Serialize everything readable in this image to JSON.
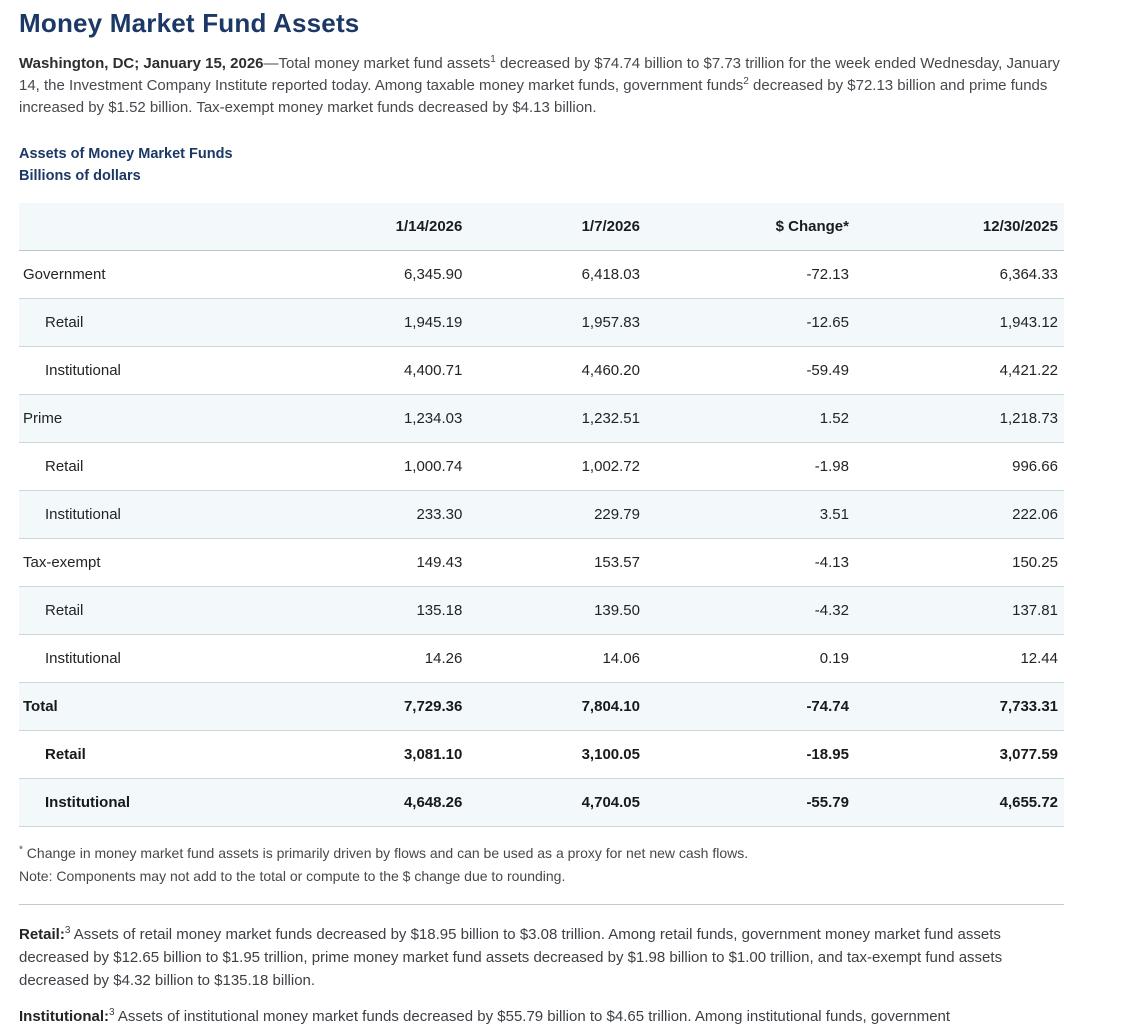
{
  "colors": {
    "brand_navy": "#1b3866",
    "row_stripe": "#f3f8fb",
    "header_border": "#b9c7cf",
    "row_border": "#ccd6db"
  },
  "page": {
    "title": "Money Market Fund Assets"
  },
  "intro": {
    "dateline": "Washington, DC; January 15, 2026",
    "dash": "—",
    "text_before_sup1": "Total money market fund assets",
    "sup1": "1",
    "text_after_sup1": " decreased by $74.74 billion to $7.73 trillion for the week ended Wednesday, January 14, the Investment Company Institute reported today. Among taxable money market funds, government funds",
    "sup2": "2",
    "text_after_sup2": " decreased by $72.13 billion and prime funds increased by $1.52 billion. Tax-exempt money market funds decreased by $4.13 billion."
  },
  "table": {
    "caption_title": "Assets of Money Market Funds",
    "caption_units": "Billions of dollars",
    "columns": [
      "1/14/2026",
      "1/7/2026",
      "$ Change*",
      "12/30/2025"
    ],
    "rows": [
      {
        "label": "Government",
        "indent": false,
        "bold": false,
        "values": [
          "6,345.90",
          "6,418.03",
          "-72.13",
          "6,364.33"
        ]
      },
      {
        "label": "Retail",
        "indent": true,
        "bold": false,
        "values": [
          "1,945.19",
          "1,957.83",
          "-12.65",
          "1,943.12"
        ]
      },
      {
        "label": "Institutional",
        "indent": true,
        "bold": false,
        "values": [
          "4,400.71",
          "4,460.20",
          "-59.49",
          "4,421.22"
        ]
      },
      {
        "label": "Prime",
        "indent": false,
        "bold": false,
        "values": [
          "1,234.03",
          "1,232.51",
          "1.52",
          "1,218.73"
        ]
      },
      {
        "label": "Retail",
        "indent": true,
        "bold": false,
        "values": [
          "1,000.74",
          "1,002.72",
          "-1.98",
          "996.66"
        ]
      },
      {
        "label": "Institutional",
        "indent": true,
        "bold": false,
        "values": [
          "233.30",
          "229.79",
          "3.51",
          "222.06"
        ]
      },
      {
        "label": "Tax-exempt",
        "indent": false,
        "bold": false,
        "values": [
          "149.43",
          "153.57",
          "-4.13",
          "150.25"
        ]
      },
      {
        "label": "Retail",
        "indent": true,
        "bold": false,
        "values": [
          "135.18",
          "139.50",
          "-4.32",
          "137.81"
        ]
      },
      {
        "label": "Institutional",
        "indent": true,
        "bold": false,
        "values": [
          "14.26",
          "14.06",
          "0.19",
          "12.44"
        ]
      },
      {
        "label": "Total",
        "indent": false,
        "bold": true,
        "values": [
          "7,729.36",
          "7,804.10",
          "-74.74",
          "7,733.31"
        ]
      },
      {
        "label": "Retail",
        "indent": true,
        "bold": true,
        "values": [
          "3,081.10",
          "3,100.05",
          "-18.95",
          "3,077.59"
        ]
      },
      {
        "label": "Institutional",
        "indent": true,
        "bold": true,
        "values": [
          "4,648.26",
          "4,704.05",
          "-55.79",
          "4,655.72"
        ]
      }
    ]
  },
  "footnotes": {
    "change_note_symbol": "*",
    "change_note": " Change in money market fund assets is primarily driven by flows and can be used as a proxy for net new cash flows.",
    "rounding_note": "Note: Components may not add to the total or compute to the $ change due to rounding."
  },
  "paragraphs": {
    "retail_label": "Retail:",
    "retail_sup": "3",
    "retail_text": " Assets of retail money market funds decreased by $18.95 billion to $3.08 trillion. Among retail funds, government money market fund assets decreased by $12.65 billion to $1.95 trillion, prime money market fund assets decreased by $1.98 billion to $1.00 trillion, and tax-exempt fund assets decreased by $4.32 billion to $135.18 billion.",
    "institutional_label": "Institutional:",
    "institutional_sup": "3",
    "institutional_text": " Assets of institutional money market funds decreased by $55.79 billion to $4.65 trillion. Among institutional funds, government"
  }
}
